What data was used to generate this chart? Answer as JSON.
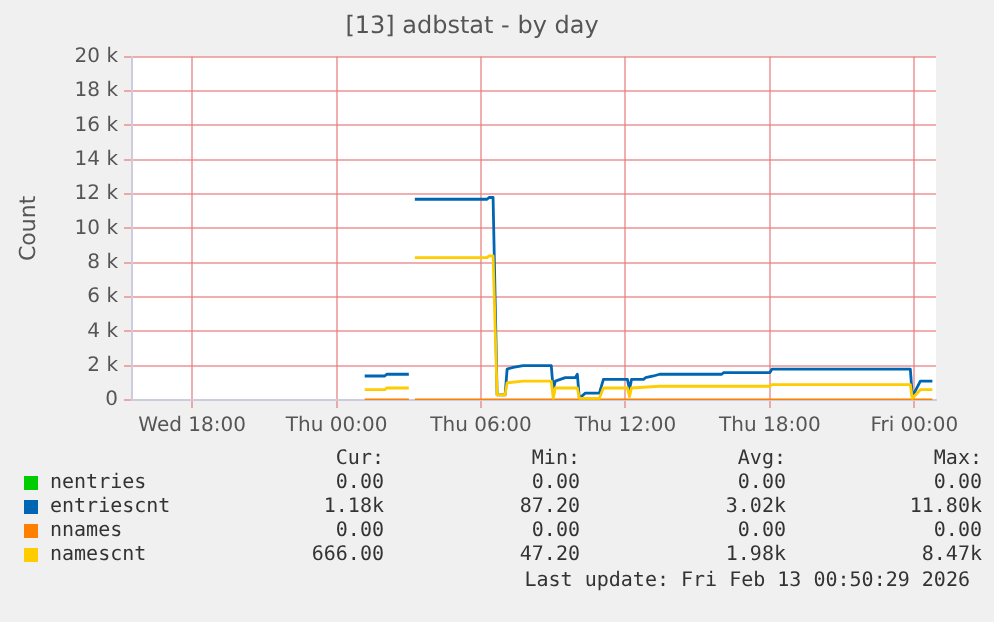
{
  "chart_data": {
    "type": "line",
    "title": "[13] adbstat - by day",
    "ylabel": "Count",
    "xlim": [
      "2026-02-11T15:30",
      "2026-02-13T00:54"
    ],
    "xticks": [
      {
        "value": "2026-02-11T18:00",
        "label": "Wed 18:00"
      },
      {
        "value": "2026-02-12T00:00",
        "label": "Thu 00:00"
      },
      {
        "value": "2026-02-12T06:00",
        "label": "Thu 06:00"
      },
      {
        "value": "2026-02-12T12:00",
        "label": "Thu 12:00"
      },
      {
        "value": "2026-02-12T18:00",
        "label": "Thu 18:00"
      },
      {
        "value": "2026-02-13T00:00",
        "label": "Fri 00:00"
      }
    ],
    "ylim": [
      0,
      20000
    ],
    "yticks": [
      0,
      {
        "value": 2000,
        "label": "2 k"
      },
      {
        "value": 4000,
        "label": "4 k"
      },
      {
        "value": 6000,
        "label": "6 k"
      },
      {
        "value": 8000,
        "label": "8 k"
      },
      {
        "value": 10000,
        "label": "10 k"
      },
      {
        "value": 12000,
        "label": "12 k"
      },
      {
        "value": 14000,
        "label": "14 k"
      },
      {
        "value": 16000,
        "label": "16 k"
      },
      {
        "value": 18000,
        "label": "18 k"
      },
      {
        "value": 20000,
        "label": "20 k"
      }
    ],
    "grid": true,
    "legend": "bottom",
    "marker": "none",
    "line_style": "solid",
    "series": [
      {
        "name": "nentries",
        "color": "#00cc00"
      },
      {
        "name": "entriescnt",
        "color": "#0066b3",
        "x": [
          "2026-02-12T01:10",
          "2026-02-12T02:00",
          "2026-02-12T02:05",
          "2026-02-12T03:00",
          "2026-02-12T03:06",
          "2026-02-12T03:15",
          "2026-02-12T06:15",
          "2026-02-12T06:20",
          "2026-02-12T06:30",
          "2026-02-12T06:40",
          "2026-02-12T07:00",
          "2026-02-12T07:05",
          "2026-02-12T07:20",
          "2026-02-12T07:45",
          "2026-02-12T08:55",
          "2026-02-12T09:00",
          "2026-02-12T09:05",
          "2026-02-12T09:30",
          "2026-02-12T09:55",
          "2026-02-12T10:00",
          "2026-02-12T10:05",
          "2026-02-12T10:20",
          "2026-02-12T10:55",
          "2026-02-12T11:05",
          "2026-02-12T12:05",
          "2026-02-12T12:10",
          "2026-02-12T12:15",
          "2026-02-12T12:45",
          "2026-02-12T12:50",
          "2026-02-12T13:10",
          "2026-02-12T13:25",
          "2026-02-12T16:00",
          "2026-02-12T16:05",
          "2026-02-12T18:00",
          "2026-02-12T18:05",
          "2026-02-12T23:50",
          "2026-02-12T23:55",
          "2026-02-13T00:15",
          "2026-02-13T00:45"
        ],
        "values": [
          1400,
          1400,
          1500,
          1500,
          null,
          11700,
          11700,
          11800,
          11800,
          300,
          300,
          1800,
          1900,
          2000,
          2000,
          600,
          1100,
          1300,
          1300,
          1500,
          100,
          400,
          400,
          1200,
          1200,
          600,
          1200,
          1200,
          1300,
          1400,
          1500,
          1500,
          1600,
          1600,
          1800,
          1800,
          200,
          1100,
          1100
        ]
      },
      {
        "name": "nnames",
        "color": "#ff7f00",
        "x": [
          "2026-02-12T01:10",
          "2026-02-12T03:00",
          "2026-02-12T03:06",
          "2026-02-12T03:15",
          "2026-02-13T00:45"
        ],
        "values": [
          0,
          0,
          null,
          0,
          0
        ]
      },
      {
        "name": "namescnt",
        "color": "#ffcc00",
        "x": [
          "2026-02-12T01:10",
          "2026-02-12T02:00",
          "2026-02-12T02:05",
          "2026-02-12T03:00",
          "2026-02-12T03:06",
          "2026-02-12T03:15",
          "2026-02-12T06:15",
          "2026-02-12T06:20",
          "2026-02-12T06:30",
          "2026-02-12T06:40",
          "2026-02-12T07:00",
          "2026-02-12T07:05",
          "2026-02-12T07:45",
          "2026-02-12T08:55",
          "2026-02-12T09:00",
          "2026-02-12T09:05",
          "2026-02-12T10:00",
          "2026-02-12T10:05",
          "2026-02-12T10:55",
          "2026-02-12T11:05",
          "2026-02-12T12:05",
          "2026-02-12T12:10",
          "2026-02-12T12:15",
          "2026-02-12T13:25",
          "2026-02-12T18:00",
          "2026-02-12T18:05",
          "2026-02-12T23:50",
          "2026-02-12T23:55",
          "2026-02-13T00:15",
          "2026-02-13T00:45"
        ],
        "values": [
          600,
          600,
          700,
          700,
          null,
          8300,
          8300,
          8400,
          8400,
          300,
          300,
          1000,
          1100,
          1100,
          100,
          700,
          700,
          100,
          100,
          700,
          700,
          200,
          700,
          800,
          800,
          900,
          900,
          100,
          600,
          600
        ]
      }
    ],
    "annotations": [
      "Cur:",
      "Min:",
      "Avg:",
      "Max:",
      "0.00",
      "0.00",
      "0.00",
      "0.00",
      "1.18k",
      "87.20",
      "3.02k",
      "11.80k",
      "0.00",
      "0.00",
      "0.00",
      "0.00",
      "666.00",
      "47.20",
      "1.98k",
      "8.47k",
      "Last update: Fri Feb 13 00:50:29 2026"
    ]
  }
}
